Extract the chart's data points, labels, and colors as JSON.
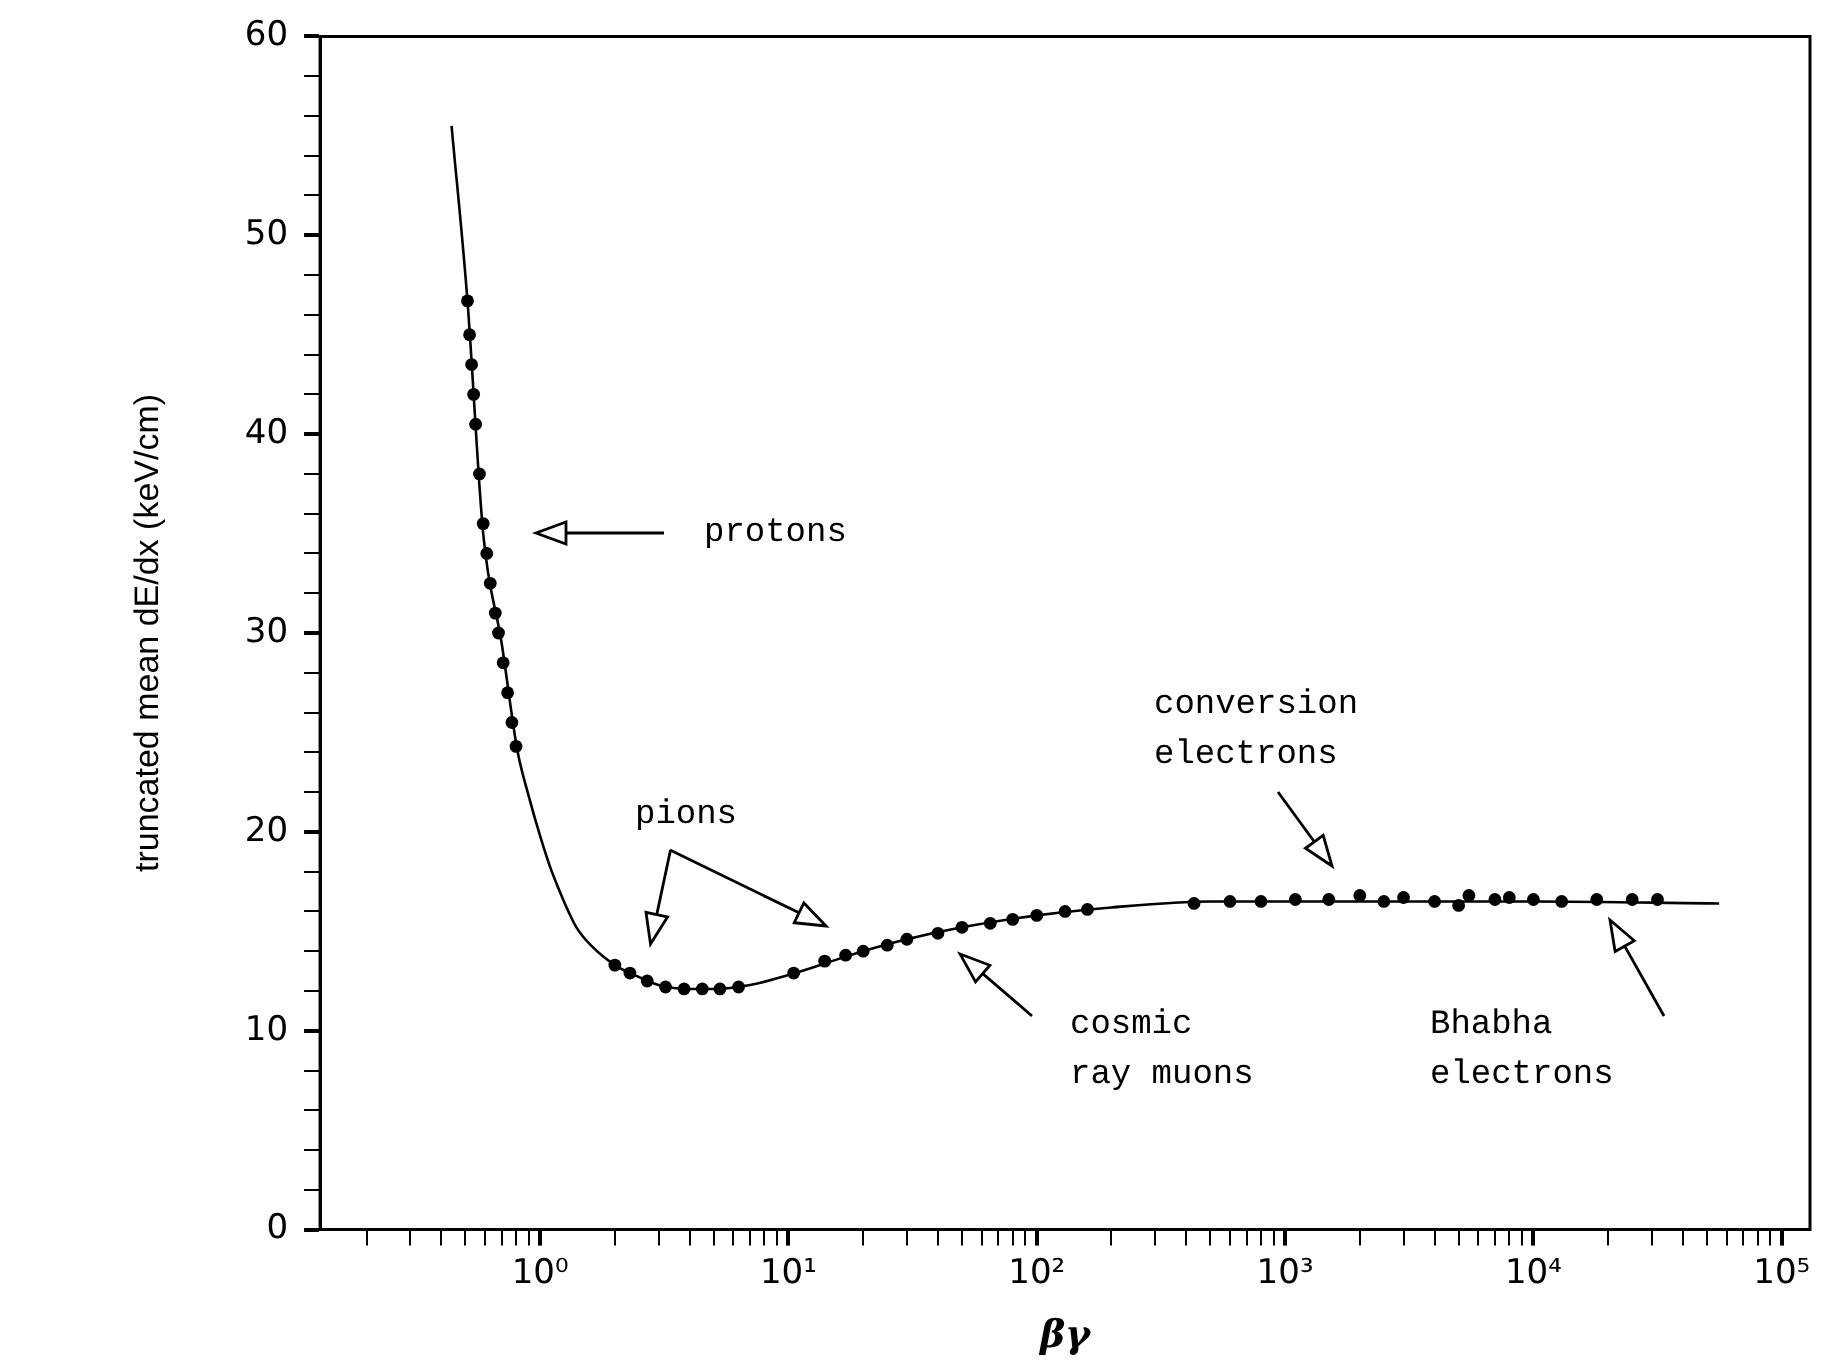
{
  "chart_data": {
    "type": "scatter",
    "xlabel": "βγ",
    "ylabel": "truncated mean dE/dx (keV/cm)",
    "log": "x",
    "grid": false,
    "legend": false,
    "marker": "circle",
    "line_style": "solid",
    "xlim": [
      0.13,
      130000
    ],
    "ylim": [
      0,
      60
    ],
    "xticks": [
      {
        "value": 0.2,
        "label": null
      },
      {
        "value": 0.3,
        "label": null
      },
      {
        "value": 0.4,
        "label": null
      },
      {
        "value": 0.5,
        "label": null
      },
      {
        "value": 0.6,
        "label": null
      },
      {
        "value": 0.7,
        "label": null
      },
      {
        "value": 0.8,
        "label": null
      },
      {
        "value": 0.9,
        "label": null
      },
      {
        "value": 1,
        "label": "10⁰"
      },
      {
        "value": 2,
        "label": null
      },
      {
        "value": 3,
        "label": null
      },
      {
        "value": 4,
        "label": null
      },
      {
        "value": 5,
        "label": null
      },
      {
        "value": 6,
        "label": null
      },
      {
        "value": 7,
        "label": null
      },
      {
        "value": 8,
        "label": null
      },
      {
        "value": 9,
        "label": null
      },
      {
        "value": 10,
        "label": "10¹"
      },
      {
        "value": 20,
        "label": null
      },
      {
        "value": 30,
        "label": null
      },
      {
        "value": 40,
        "label": null
      },
      {
        "value": 50,
        "label": null
      },
      {
        "value": 60,
        "label": null
      },
      {
        "value": 70,
        "label": null
      },
      {
        "value": 80,
        "label": null
      },
      {
        "value": 90,
        "label": null
      },
      {
        "value": 100,
        "label": "10²"
      },
      {
        "value": 200,
        "label": null
      },
      {
        "value": 300,
        "label": null
      },
      {
        "value": 400,
        "label": null
      },
      {
        "value": 500,
        "label": null
      },
      {
        "value": 600,
        "label": null
      },
      {
        "value": 700,
        "label": null
      },
      {
        "value": 800,
        "label": null
      },
      {
        "value": 900,
        "label": null
      },
      {
        "value": 1000,
        "label": "10³"
      },
      {
        "value": 2000,
        "label": null
      },
      {
        "value": 3000,
        "label": null
      },
      {
        "value": 4000,
        "label": null
      },
      {
        "value": 5000,
        "label": null
      },
      {
        "value": 6000,
        "label": null
      },
      {
        "value": 7000,
        "label": null
      },
      {
        "value": 8000,
        "label": null
      },
      {
        "value": 9000,
        "label": null
      },
      {
        "value": 10000,
        "label": "10⁴"
      },
      {
        "value": 20000,
        "label": null
      },
      {
        "value": 30000,
        "label": null
      },
      {
        "value": 40000,
        "label": null
      },
      {
        "value": 50000,
        "label": null
      },
      {
        "value": 60000,
        "label": null
      },
      {
        "value": 70000,
        "label": null
      },
      {
        "value": 80000,
        "label": null
      },
      {
        "value": 90000,
        "label": null
      },
      {
        "value": 100000,
        "label": "10⁵"
      }
    ],
    "yticks": [
      0,
      {
        "value": 2,
        "label": null
      },
      {
        "value": 4,
        "label": null
      },
      {
        "value": 6,
        "label": null
      },
      {
        "value": 8,
        "label": null
      },
      10,
      {
        "value": 12,
        "label": null
      },
      {
        "value": 14,
        "label": null
      },
      {
        "value": 16,
        "label": null
      },
      {
        "value": 18,
        "label": null
      },
      20,
      {
        "value": 22,
        "label": null
      },
      {
        "value": 24,
        "label": null
      },
      {
        "value": 26,
        "label": null
      },
      {
        "value": 28,
        "label": null
      },
      30,
      {
        "value": 32,
        "label": null
      },
      {
        "value": 34,
        "label": null
      },
      {
        "value": 36,
        "label": null
      },
      {
        "value": 38,
        "label": null
      },
      40,
      {
        "value": 42,
        "label": null
      },
      {
        "value": 44,
        "label": null
      },
      {
        "value": 46,
        "label": null
      },
      {
        "value": 48,
        "label": null
      },
      50,
      {
        "value": 52,
        "label": null
      },
      {
        "value": 54,
        "label": null
      },
      {
        "value": 56,
        "label": null
      },
      {
        "value": 58,
        "label": null
      },
      60
    ],
    "series": [
      {
        "type": "line",
        "marker": "none",
        "color": "#000000",
        "x": [
          0.44,
          0.51,
          0.59,
          0.7,
          0.81,
          0.9,
          1.0,
          1.1,
          1.2,
          1.3,
          1.4,
          1.6,
          2,
          2.5,
          3,
          4,
          5,
          7,
          10,
          15,
          20,
          30,
          50,
          100,
          200,
          500,
          1000,
          10000,
          56000
        ],
        "values": [
          55.5,
          46.7,
          35,
          29.5,
          24.1,
          21.8,
          19.8,
          18.2,
          17,
          16,
          15.2,
          14.3,
          13.3,
          12.7,
          12.3,
          12.1,
          12.1,
          12.3,
          12.8,
          13.5,
          14,
          14.6,
          15.2,
          15.8,
          16.2,
          16.5,
          16.5,
          16.5,
          16.4
        ]
      },
      {
        "color": "#000000",
        "x": [
          0.51,
          0.52,
          0.53,
          0.54,
          0.55,
          0.57,
          0.59,
          0.61,
          0.63,
          0.66,
          0.68,
          0.71,
          0.74,
          0.77,
          0.8,
          2,
          2.3,
          2.7,
          3.2,
          3.8,
          4.5,
          5.3,
          6.3,
          10.5,
          14,
          17,
          20,
          25,
          30,
          40,
          50,
          65,
          80,
          100,
          130,
          160,
          430,
          600,
          800,
          1100,
          1500,
          2000,
          2500,
          3000,
          4000,
          5000,
          5500,
          7000,
          8000,
          10000,
          13000,
          18000,
          25000,
          31600
        ],
        "values": [
          46.7,
          45,
          43.5,
          42,
          40.5,
          38,
          35.5,
          34,
          32.5,
          31,
          30,
          28.5,
          27,
          25.5,
          24.3,
          13.3,
          12.9,
          12.5,
          12.2,
          12.1,
          12.1,
          12.1,
          12.2,
          12.9,
          13.5,
          13.8,
          14,
          14.3,
          14.6,
          14.9,
          15.2,
          15.4,
          15.6,
          15.8,
          16,
          16.1,
          16.4,
          16.5,
          16.5,
          16.6,
          16.6,
          16.8,
          16.5,
          16.7,
          16.5,
          16.3,
          16.8,
          16.6,
          16.7,
          16.6,
          16.5,
          16.6,
          16.6,
          16.6
        ]
      }
    ],
    "annotations": [
      "protons",
      "pions",
      "cosmic ray muons",
      "conversion electrons",
      "Bhabha electrons"
    ]
  }
}
